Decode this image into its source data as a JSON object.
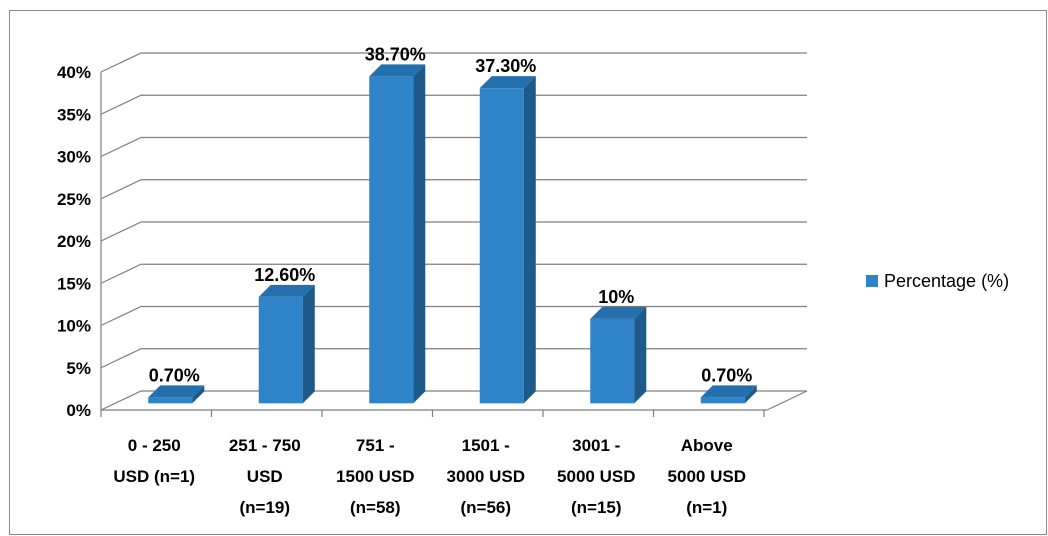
{
  "chart_data": {
    "type": "bar",
    "categories": [
      [
        "0 - 250",
        "USD (n=1)"
      ],
      [
        "251 - 750",
        "USD",
        "(n=19)"
      ],
      [
        "751 -",
        "1500 USD",
        "(n=58)"
      ],
      [
        "1501 -",
        "3000 USD",
        "(n=56)"
      ],
      [
        "3001 -",
        "5000 USD",
        "(n=15)"
      ],
      [
        "Above",
        "5000 USD",
        "(n=1)"
      ]
    ],
    "series": [
      {
        "name": "Percentage (%)",
        "values": [
          0.7,
          12.6,
          38.7,
          37.3,
          10,
          0.7
        ],
        "labels": [
          "0.70%",
          "12.60%",
          "38.70%",
          "37.30%",
          "10%",
          "0.70%"
        ]
      }
    ],
    "ylim": [
      0,
      40
    ],
    "yticks": [
      "0%",
      "5%",
      "10%",
      "15%",
      "20%",
      "25%",
      "30%",
      "35%",
      "40%"
    ],
    "grid": true,
    "legend_position": "right",
    "colors": {
      "front": "#2f83c8",
      "side": "#1d5a8a",
      "top": "#2470ad",
      "grid": "#7f7f7f"
    }
  }
}
